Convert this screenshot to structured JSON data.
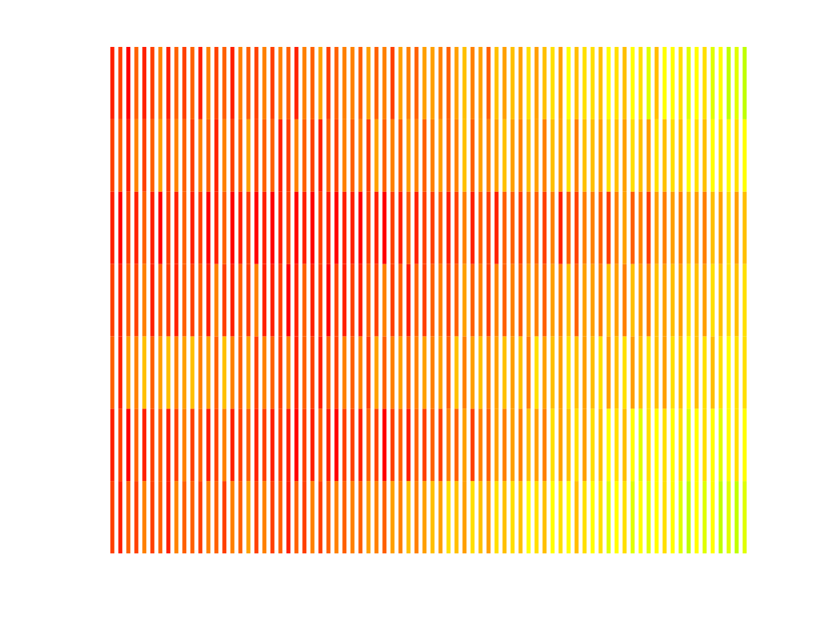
{
  "chart_data": {
    "type": "heatmap",
    "tick_labels": false,
    "grid": false,
    "zlim": [
      0,
      1
    ],
    "cells": [
      [
        0.1,
        0.2,
        0.0,
        0.3,
        0.1,
        0.2,
        0.4,
        0.1,
        0.3,
        0.2,
        0.3,
        0.1,
        0.4,
        0.2,
        0.3,
        0.1,
        0.4,
        0.3,
        0.2,
        0.4,
        0.2,
        0.4,
        0.3,
        0.1,
        0.4,
        0.3,
        0.5,
        0.2,
        0.3,
        0.4,
        0.4,
        0.3,
        0.5,
        0.3,
        0.4,
        0.2,
        0.5,
        0.4,
        0.3,
        0.5,
        0.5,
        0.4,
        0.3,
        0.5,
        0.6,
        0.4,
        0.5,
        0.3,
        0.6,
        0.5,
        0.6,
        0.5,
        0.7,
        0.5,
        0.6,
        0.7,
        0.5,
        0.8,
        0.6,
        0.7,
        0.7,
        0.6,
        0.8,
        0.7,
        0.6,
        0.8,
        0.7,
        0.9,
        0.6,
        0.8,
        0.8,
        0.7,
        0.9,
        0.8,
        0.7,
        0.9,
        0.8,
        1.0,
        0.9,
        1.0
      ],
      [
        0.2,
        0.3,
        0.1,
        0.4,
        0.2,
        0.3,
        0.5,
        0.2,
        0.4,
        0.3,
        0.2,
        0.4,
        0.3,
        0.1,
        0.4,
        0.2,
        0.3,
        0.5,
        0.2,
        0.3,
        0.3,
        0.1,
        0.2,
        0.4,
        0.3,
        0.2,
        0.1,
        0.3,
        0.2,
        0.4,
        0.3,
        0.4,
        0.2,
        0.5,
        0.3,
        0.4,
        0.3,
        0.5,
        0.4,
        0.3,
        0.4,
        0.5,
        0.3,
        0.4,
        0.6,
        0.3,
        0.5,
        0.4,
        0.5,
        0.6,
        0.5,
        0.4,
        0.6,
        0.5,
        0.4,
        0.6,
        0.5,
        0.7,
        0.4,
        0.6,
        0.6,
        0.5,
        0.7,
        0.6,
        0.5,
        0.7,
        0.6,
        0.5,
        0.7,
        0.6,
        0.7,
        0.6,
        0.8,
        0.7,
        0.6,
        0.8,
        0.7,
        0.8,
        0.7,
        0.8
      ],
      [
        0.1,
        0.0,
        0.2,
        0.1,
        0.3,
        0.1,
        0.0,
        0.2,
        0.1,
        0.3,
        0.1,
        0.2,
        0.0,
        0.1,
        0.3,
        0.0,
        0.1,
        0.2,
        0.0,
        0.1,
        0.0,
        0.1,
        0.2,
        0.0,
        0.1,
        0.0,
        0.2,
        0.1,
        0.0,
        0.1,
        0.1,
        0.0,
        0.2,
        0.1,
        0.0,
        0.2,
        0.1,
        0.3,
        0.1,
        0.2,
        0.2,
        0.3,
        0.1,
        0.2,
        0.4,
        0.1,
        0.3,
        0.2,
        0.1,
        0.3,
        0.3,
        0.2,
        0.4,
        0.3,
        0.2,
        0.4,
        0.1,
        0.3,
        0.2,
        0.4,
        0.4,
        0.3,
        0.2,
        0.4,
        0.5,
        0.3,
        0.4,
        0.2,
        0.5,
        0.4,
        0.5,
        0.4,
        0.6,
        0.5,
        0.4,
        0.6,
        0.5,
        0.7,
        0.5,
        0.6
      ],
      [
        0.2,
        0.1,
        0.3,
        0.2,
        0.4,
        0.1,
        0.3,
        0.2,
        0.1,
        0.3,
        0.2,
        0.3,
        0.1,
        0.4,
        0.2,
        0.1,
        0.3,
        0.2,
        0.4,
        0.1,
        0.1,
        0.2,
        0.0,
        0.1,
        0.3,
        0.1,
        0.2,
        0.0,
        0.2,
        0.1,
        0.2,
        0.1,
        0.3,
        0.2,
        0.4,
        0.2,
        0.3,
        0.1,
        0.3,
        0.2,
        0.3,
        0.4,
        0.2,
        0.3,
        0.5,
        0.3,
        0.4,
        0.2,
        0.4,
        0.3,
        0.4,
        0.3,
        0.5,
        0.4,
        0.3,
        0.5,
        0.4,
        0.6,
        0.3,
        0.5,
        0.5,
        0.4,
        0.6,
        0.5,
        0.4,
        0.6,
        0.5,
        0.4,
        0.6,
        0.5,
        0.6,
        0.5,
        0.7,
        0.6,
        0.5,
        0.7,
        0.6,
        0.7,
        0.6,
        0.7
      ],
      [
        0.3,
        0.1,
        0.5,
        0.4,
        0.6,
        0.3,
        0.5,
        0.6,
        0.4,
        0.5,
        0.6,
        0.4,
        0.5,
        0.3,
        0.6,
        0.4,
        0.3,
        0.5,
        0.2,
        0.4,
        0.3,
        0.2,
        0.4,
        0.1,
        0.3,
        0.2,
        0.1,
        0.3,
        0.2,
        0.4,
        0.3,
        0.4,
        0.2,
        0.5,
        0.3,
        0.4,
        0.5,
        0.3,
        0.4,
        0.5,
        0.4,
        0.5,
        0.3,
        0.6,
        0.4,
        0.5,
        0.6,
        0.4,
        0.5,
        0.6,
        0.5,
        0.6,
        0.4,
        0.7,
        0.5,
        0.6,
        0.5,
        0.7,
        0.6,
        0.5,
        0.6,
        0.7,
        0.5,
        0.6,
        0.7,
        0.5,
        0.6,
        0.7,
        0.6,
        0.5,
        0.7,
        0.6,
        0.8,
        0.6,
        0.7,
        0.6,
        0.7,
        0.8,
        0.7,
        0.7
      ],
      [
        0.1,
        0.2,
        0.0,
        0.3,
        0.1,
        0.2,
        0.3,
        0.1,
        0.2,
        0.4,
        0.2,
        0.3,
        0.1,
        0.2,
        0.4,
        0.1,
        0.2,
        0.3,
        0.1,
        0.2,
        0.1,
        0.2,
        0.1,
        0.0,
        0.2,
        0.1,
        0.3,
        0.1,
        0.0,
        0.2,
        0.2,
        0.1,
        0.3,
        0.2,
        0.0,
        0.2,
        0.3,
        0.1,
        0.3,
        0.2,
        0.3,
        0.2,
        0.4,
        0.3,
        0.5,
        0.2,
        0.4,
        0.3,
        0.5,
        0.4,
        0.5,
        0.4,
        0.6,
        0.5,
        0.4,
        0.7,
        0.5,
        0.6,
        0.7,
        0.5,
        0.7,
        0.6,
        0.8,
        0.7,
        0.6,
        0.8,
        0.9,
        0.7,
        0.8,
        0.7,
        0.8,
        0.7,
        0.9,
        0.8,
        0.7,
        0.8,
        0.9,
        0.8,
        0.7,
        0.8
      ],
      [
        0.2,
        0.1,
        0.3,
        0.2,
        0.4,
        0.2,
        0.3,
        0.1,
        0.4,
        0.3,
        0.3,
        0.2,
        0.4,
        0.3,
        0.2,
        0.4,
        0.3,
        0.5,
        0.2,
        0.4,
        0.2,
        0.3,
        0.1,
        0.3,
        0.2,
        0.4,
        0.2,
        0.3,
        0.4,
        0.3,
        0.4,
        0.3,
        0.5,
        0.4,
        0.3,
        0.5,
        0.4,
        0.6,
        0.4,
        0.5,
        0.6,
        0.5,
        0.7,
        0.6,
        0.5,
        0.7,
        0.6,
        0.5,
        0.7,
        0.6,
        0.7,
        0.6,
        0.8,
        0.7,
        0.6,
        0.8,
        0.7,
        0.8,
        0.6,
        0.7,
        0.8,
        0.7,
        0.9,
        0.8,
        0.7,
        0.9,
        0.8,
        0.9,
        0.8,
        0.7,
        0.8,
        0.9,
        1.0,
        0.8,
        0.9,
        0.8,
        1.0,
        0.9,
        1.0,
        0.9
      ]
    ]
  }
}
